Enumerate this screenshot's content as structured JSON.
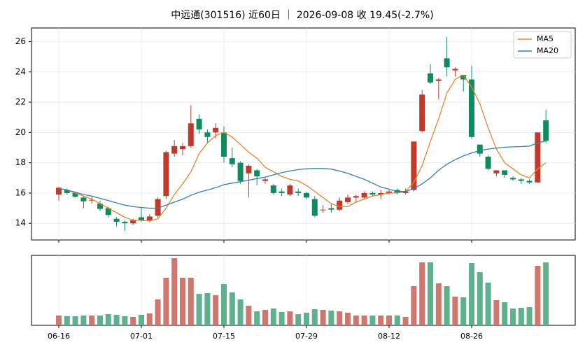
{
  "chart_data": {
    "type": "candlestick",
    "title": "中远通(301516) 近60日 ｜ 2026-09-08 收 19.45(-2.7%)",
    "categories": [
      "06-16",
      null,
      null,
      null,
      null,
      null,
      null,
      null,
      null,
      null,
      "07-01",
      null,
      null,
      null,
      null,
      null,
      null,
      null,
      null,
      null,
      "07-15",
      null,
      null,
      null,
      null,
      null,
      null,
      null,
      null,
      null,
      "07-29",
      null,
      null,
      null,
      null,
      null,
      null,
      null,
      null,
      null,
      "08-12",
      null,
      null,
      null,
      null,
      null,
      null,
      null,
      null,
      null,
      "08-26",
      null,
      null,
      null,
      null,
      null,
      null,
      null,
      null,
      null
    ],
    "open": [
      15.9,
      16.2,
      16.0,
      15.7,
      15.5,
      15.3,
      15.0,
      14.3,
      14.1,
      14.0,
      14.4,
      14.2,
      14.5,
      15.8,
      18.6,
      18.9,
      19.1,
      20.9,
      20.0,
      20.0,
      20.0,
      18.3,
      18.0,
      17.3,
      17.5,
      16.8,
      16.5,
      16.1,
      15.9,
      16.1,
      16.0,
      15.6,
      14.9,
      15.0,
      14.9,
      15.4,
      15.7,
      15.7,
      16.0,
      15.9,
      16.0,
      16.2,
      16.0,
      16.2,
      20.1,
      23.9,
      23.4,
      24.9,
      24.1,
      23.8,
      23.5,
      19.2,
      18.4,
      17.3,
      17.5,
      17.0,
      16.9,
      16.8,
      16.7,
      20.8
    ],
    "high": [
      16.4,
      16.3,
      16.1,
      15.8,
      15.8,
      15.5,
      15.1,
      14.4,
      14.2,
      14.3,
      15.0,
      14.6,
      15.7,
      18.8,
      19.5,
      19.3,
      21.8,
      21.2,
      20.2,
      20.6,
      20.4,
      19.0,
      18.1,
      17.9,
      17.6,
      17.0,
      16.6,
      16.3,
      16.6,
      16.3,
      16.1,
      15.8,
      15.2,
      15.3,
      15.7,
      15.9,
      15.9,
      16.1,
      16.1,
      16.2,
      16.2,
      16.3,
      16.3,
      19.4,
      22.8,
      24.5,
      23.6,
      26.3,
      24.3,
      23.8,
      24.4,
      19.2,
      18.5,
      17.5,
      17.5,
      17.1,
      17.0,
      16.9,
      20.0,
      21.5
    ],
    "low": [
      15.5,
      15.9,
      15.7,
      15.0,
      15.3,
      14.8,
      14.4,
      13.8,
      13.5,
      13.9,
      14.1,
      14.1,
      14.4,
      15.6,
      18.4,
      18.5,
      19.0,
      19.9,
      19.3,
      19.6,
      18.0,
      17.7,
      16.6,
      15.7,
      16.5,
      16.6,
      15.9,
      15.8,
      15.8,
      15.8,
      15.6,
      14.4,
      14.7,
      14.7,
      14.8,
      15.3,
      15.4,
      15.6,
      15.8,
      15.6,
      15.9,
      15.9,
      15.9,
      16.1,
      20.0,
      23.2,
      22.2,
      23.7,
      23.7,
      22.7,
      19.6,
      18.4,
      17.5,
      17.1,
      17.0,
      16.8,
      16.6,
      16.6,
      16.7,
      19.3
    ],
    "close": [
      16.35,
      16.0,
      15.75,
      15.45,
      15.55,
      14.95,
      14.55,
      14.1,
      14.0,
      14.2,
      14.2,
      14.45,
      15.6,
      18.7,
      19.1,
      19.1,
      20.6,
      20.2,
      19.7,
      20.3,
      18.4,
      17.9,
      16.8,
      17.8,
      17.1,
      16.9,
      16.0,
      16.0,
      16.5,
      16.0,
      15.7,
      14.5,
      14.9,
      14.9,
      15.5,
      15.7,
      15.8,
      16.0,
      15.9,
      16.0,
      16.1,
      16.0,
      16.1,
      19.4,
      22.5,
      23.3,
      23.5,
      24.3,
      24.2,
      23.5,
      19.7,
      18.6,
      17.6,
      17.5,
      17.2,
      16.9,
      16.8,
      16.7,
      20.0,
      19.45
    ],
    "up_color": "#c0392b",
    "down_color": "#0e8c5e",
    "ylim": [
      12.9,
      26.9
    ],
    "yticks": [
      14,
      16,
      18,
      20,
      22,
      24,
      26
    ],
    "grid": true,
    "legend": "upper right",
    "series": [
      {
        "name": "MA5",
        "color": "#e8832a",
        "values": [
          16.3,
          16.2,
          16.0,
          15.8,
          15.6,
          15.3,
          15.0,
          14.7,
          14.4,
          14.2,
          14.2,
          14.15,
          14.3,
          15.0,
          15.9,
          16.6,
          17.4,
          18.6,
          19.3,
          19.8,
          20.0,
          19.7,
          19.2,
          18.7,
          18.3,
          17.7,
          17.4,
          17.1,
          16.9,
          16.8,
          16.5,
          16.1,
          15.7,
          15.3,
          15.1,
          15.1,
          15.4,
          15.6,
          15.8,
          15.9,
          16.0,
          16.0,
          16.1,
          16.7,
          17.8,
          19.4,
          20.9,
          22.6,
          23.5,
          23.8,
          23.0,
          21.9,
          20.3,
          18.9,
          18.0,
          17.6,
          17.2,
          17.0,
          17.6,
          18.0
        ]
      },
      {
        "name": "MA20",
        "color": "#2f7fb5",
        "values": [
          16.3,
          16.2,
          16.05,
          15.9,
          15.8,
          15.65,
          15.5,
          15.35,
          15.2,
          15.1,
          15.05,
          15.0,
          15.0,
          15.2,
          15.4,
          15.6,
          15.85,
          16.05,
          16.2,
          16.35,
          16.55,
          16.65,
          16.75,
          16.85,
          16.95,
          17.05,
          17.2,
          17.35,
          17.45,
          17.55,
          17.6,
          17.62,
          17.62,
          17.58,
          17.45,
          17.3,
          17.1,
          16.9,
          16.65,
          16.4,
          16.25,
          16.1,
          16.1,
          16.3,
          16.6,
          17.0,
          17.5,
          17.9,
          18.2,
          18.45,
          18.65,
          18.8,
          18.9,
          18.97,
          19.02,
          19.05,
          19.07,
          19.1,
          19.3,
          19.45
        ]
      }
    ],
    "volume": {
      "type": "bar",
      "ylim": [
        0,
        100
      ],
      "up_color": "#d0766c",
      "down_color": "#5fb08d",
      "values": [
        14,
        13,
        13,
        14,
        14,
        14,
        16,
        15,
        13,
        12,
        15,
        17,
        37,
        68,
        96,
        68,
        68,
        45,
        46,
        43,
        59,
        47,
        37,
        28,
        20,
        22,
        24,
        19,
        20,
        16,
        18,
        23,
        22,
        21,
        20,
        18,
        14,
        14,
        14,
        14,
        14,
        14,
        12,
        56,
        90,
        90,
        60,
        56,
        41,
        40,
        89,
        76,
        61,
        36,
        33,
        24,
        25,
        26,
        85,
        90
      ]
    }
  }
}
